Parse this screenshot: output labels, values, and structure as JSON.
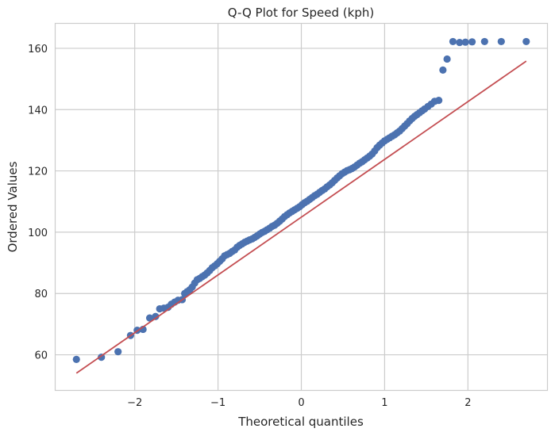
{
  "chart_data": {
    "type": "scatter",
    "title": "Q-Q Plot for Speed (kph)",
    "xlabel": "Theoretical quantiles",
    "ylabel": "Ordered Values",
    "xlim": [
      -2.95,
      2.95
    ],
    "ylim": [
      48.5,
      168
    ],
    "xticks": [
      -2,
      -1,
      0,
      1,
      2
    ],
    "xtick_labels": [
      "−2",
      "−1",
      "0",
      "1",
      "2"
    ],
    "yticks": [
      60,
      80,
      100,
      120,
      140,
      160
    ],
    "ytick_labels": [
      "60",
      "80",
      "100",
      "120",
      "140",
      "160"
    ],
    "grid": true,
    "colors": {
      "points": "#4c72b0",
      "fit_line": "#c44e52",
      "grid": "#cccccc",
      "spine": "#cccccc",
      "background": "#ffffff"
    },
    "fit_line": {
      "x": [
        -2.7,
        2.7
      ],
      "y": [
        54.0,
        155.8
      ]
    },
    "points": {
      "x": [
        -2.7,
        -2.4,
        -2.2,
        -2.05,
        -1.97,
        -1.9,
        -1.82,
        -1.75,
        -1.7,
        -1.65,
        -1.6,
        -1.56,
        -1.52,
        -1.48,
        -1.43,
        -1.4,
        -1.37,
        -1.34,
        -1.31,
        -1.28,
        -1.25,
        -1.22,
        -1.19,
        -1.16,
        -1.13,
        -1.1,
        -1.07,
        -1.04,
        -1.01,
        -0.98,
        -0.95,
        -0.92,
        -0.89,
        -0.86,
        -0.83,
        -0.8,
        -0.77,
        -0.74,
        -0.71,
        -0.68,
        -0.65,
        -0.62,
        -0.59,
        -0.56,
        -0.53,
        -0.5,
        -0.47,
        -0.44,
        -0.41,
        -0.38,
        -0.35,
        -0.32,
        -0.29,
        -0.26,
        -0.23,
        -0.2,
        -0.17,
        -0.14,
        -0.11,
        -0.08,
        -0.05,
        -0.02,
        0.01,
        0.04,
        0.07,
        0.1,
        0.13,
        0.16,
        0.19,
        0.22,
        0.25,
        0.28,
        0.31,
        0.34,
        0.37,
        0.4,
        0.43,
        0.46,
        0.49,
        0.52,
        0.55,
        0.58,
        0.61,
        0.64,
        0.67,
        0.7,
        0.73,
        0.76,
        0.79,
        0.82,
        0.85,
        0.88,
        0.91,
        0.94,
        0.97,
        1.0,
        1.03,
        1.06,
        1.09,
        1.12,
        1.15,
        1.18,
        1.21,
        1.24,
        1.27,
        1.3,
        1.33,
        1.36,
        1.39,
        1.42,
        1.45,
        1.48,
        1.52,
        1.56,
        1.6,
        1.65,
        1.7,
        1.75,
        1.82,
        1.9,
        1.97,
        2.05,
        2.2,
        2.4,
        2.7
      ],
      "y": [
        58.5,
        59.2,
        61.0,
        66.3,
        68.0,
        68.3,
        72.0,
        72.5,
        75.0,
        75.2,
        75.5,
        76.5,
        77.2,
        77.8,
        78.0,
        80.0,
        80.6,
        81.2,
        82.1,
        83.4,
        84.5,
        84.9,
        85.5,
        86.0,
        86.7,
        87.5,
        88.4,
        89.0,
        89.7,
        90.5,
        91.3,
        92.3,
        92.7,
        93.1,
        93.7,
        94.2,
        95.1,
        95.7,
        96.2,
        96.7,
        97.1,
        97.5,
        97.8,
        98.3,
        98.8,
        99.4,
        99.9,
        100.3,
        100.8,
        101.3,
        101.9,
        102.3,
        102.9,
        103.6,
        104.3,
        105.1,
        105.7,
        106.3,
        106.8,
        107.3,
        107.8,
        108.3,
        109.0,
        109.6,
        110.1,
        110.7,
        111.3,
        111.9,
        112.4,
        113.0,
        113.6,
        114.1,
        114.8,
        115.4,
        116.1,
        116.9,
        117.7,
        118.4,
        119.1,
        119.6,
        120.1,
        120.4,
        120.8,
        121.3,
        121.9,
        122.5,
        123.0,
        123.6,
        124.2,
        124.8,
        125.5,
        126.5,
        127.6,
        128.4,
        129.1,
        129.8,
        130.3,
        130.8,
        131.3,
        131.8,
        132.4,
        133.0,
        133.8,
        134.6,
        135.4,
        136.3,
        137.1,
        137.8,
        138.4,
        139.0,
        139.6,
        140.2,
        141.0,
        141.8,
        142.7,
        143.0,
        152.9,
        156.5,
        162.2,
        161.9,
        162.0,
        162.1,
        162.2,
        162.2,
        162.2
      ]
    }
  }
}
